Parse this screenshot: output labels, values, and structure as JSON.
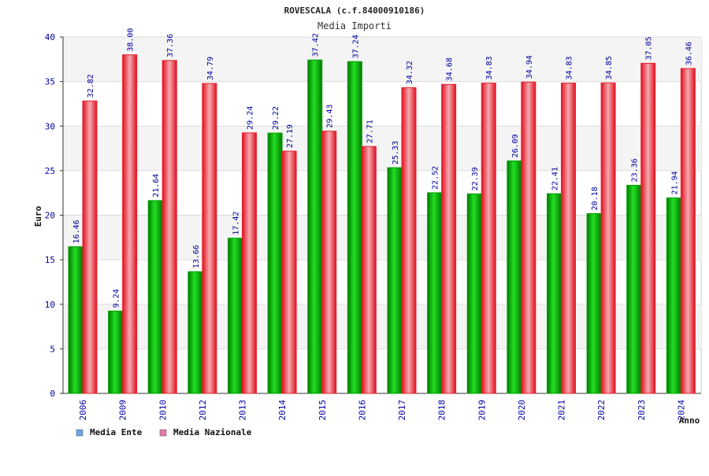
{
  "chart_data": {
    "type": "bar",
    "title": "ROVESCALA (c.f.84000910186)",
    "subtitle": "Media Importi",
    "xlabel": "Anno",
    "ylabel": "Euro",
    "ylim": [
      0,
      40
    ],
    "yticks": [
      "0",
      "5",
      "10",
      "15",
      "20",
      "25",
      "30",
      "35",
      "40"
    ],
    "grid": true,
    "legend_position": "bottom-left",
    "categories": [
      "2006",
      "2009",
      "2010",
      "2012",
      "2013",
      "2014",
      "2015",
      "2016",
      "2017",
      "2018",
      "2019",
      "2020",
      "2021",
      "2022",
      "2023",
      "2024"
    ],
    "series": [
      {
        "name": "Media Ente",
        "color": "#00b000",
        "legend_color": "#6aa6e8",
        "values": [
          16.46,
          9.24,
          21.64,
          13.66,
          17.42,
          29.22,
          37.42,
          37.24,
          25.33,
          22.52,
          22.39,
          26.09,
          22.41,
          20.18,
          23.36,
          21.94
        ],
        "labels": [
          "16.46",
          "9.24",
          "21.64",
          "13.66",
          "17.42",
          "29.22",
          "37.42",
          "37.24",
          "25.33",
          "22.52",
          "22.39",
          "26.09",
          "22.41",
          "20.18",
          "23.36",
          "21.94"
        ]
      },
      {
        "name": "Media Nazionale",
        "color": "#e8202e",
        "legend_color": "#e87aa8",
        "values": [
          32.82,
          38.0,
          37.36,
          34.79,
          29.24,
          27.19,
          29.43,
          27.71,
          34.32,
          34.68,
          34.83,
          34.94,
          34.83,
          34.85,
          37.05,
          36.46
        ],
        "labels": [
          "32.82",
          "38.00",
          "37.36",
          "34.79",
          "29.24",
          "27.19",
          "29.43",
          "27.71",
          "34.32",
          "34.68",
          "34.83",
          "34.94",
          "34.83",
          "34.85",
          "37.05",
          "36.46"
        ]
      }
    ]
  }
}
